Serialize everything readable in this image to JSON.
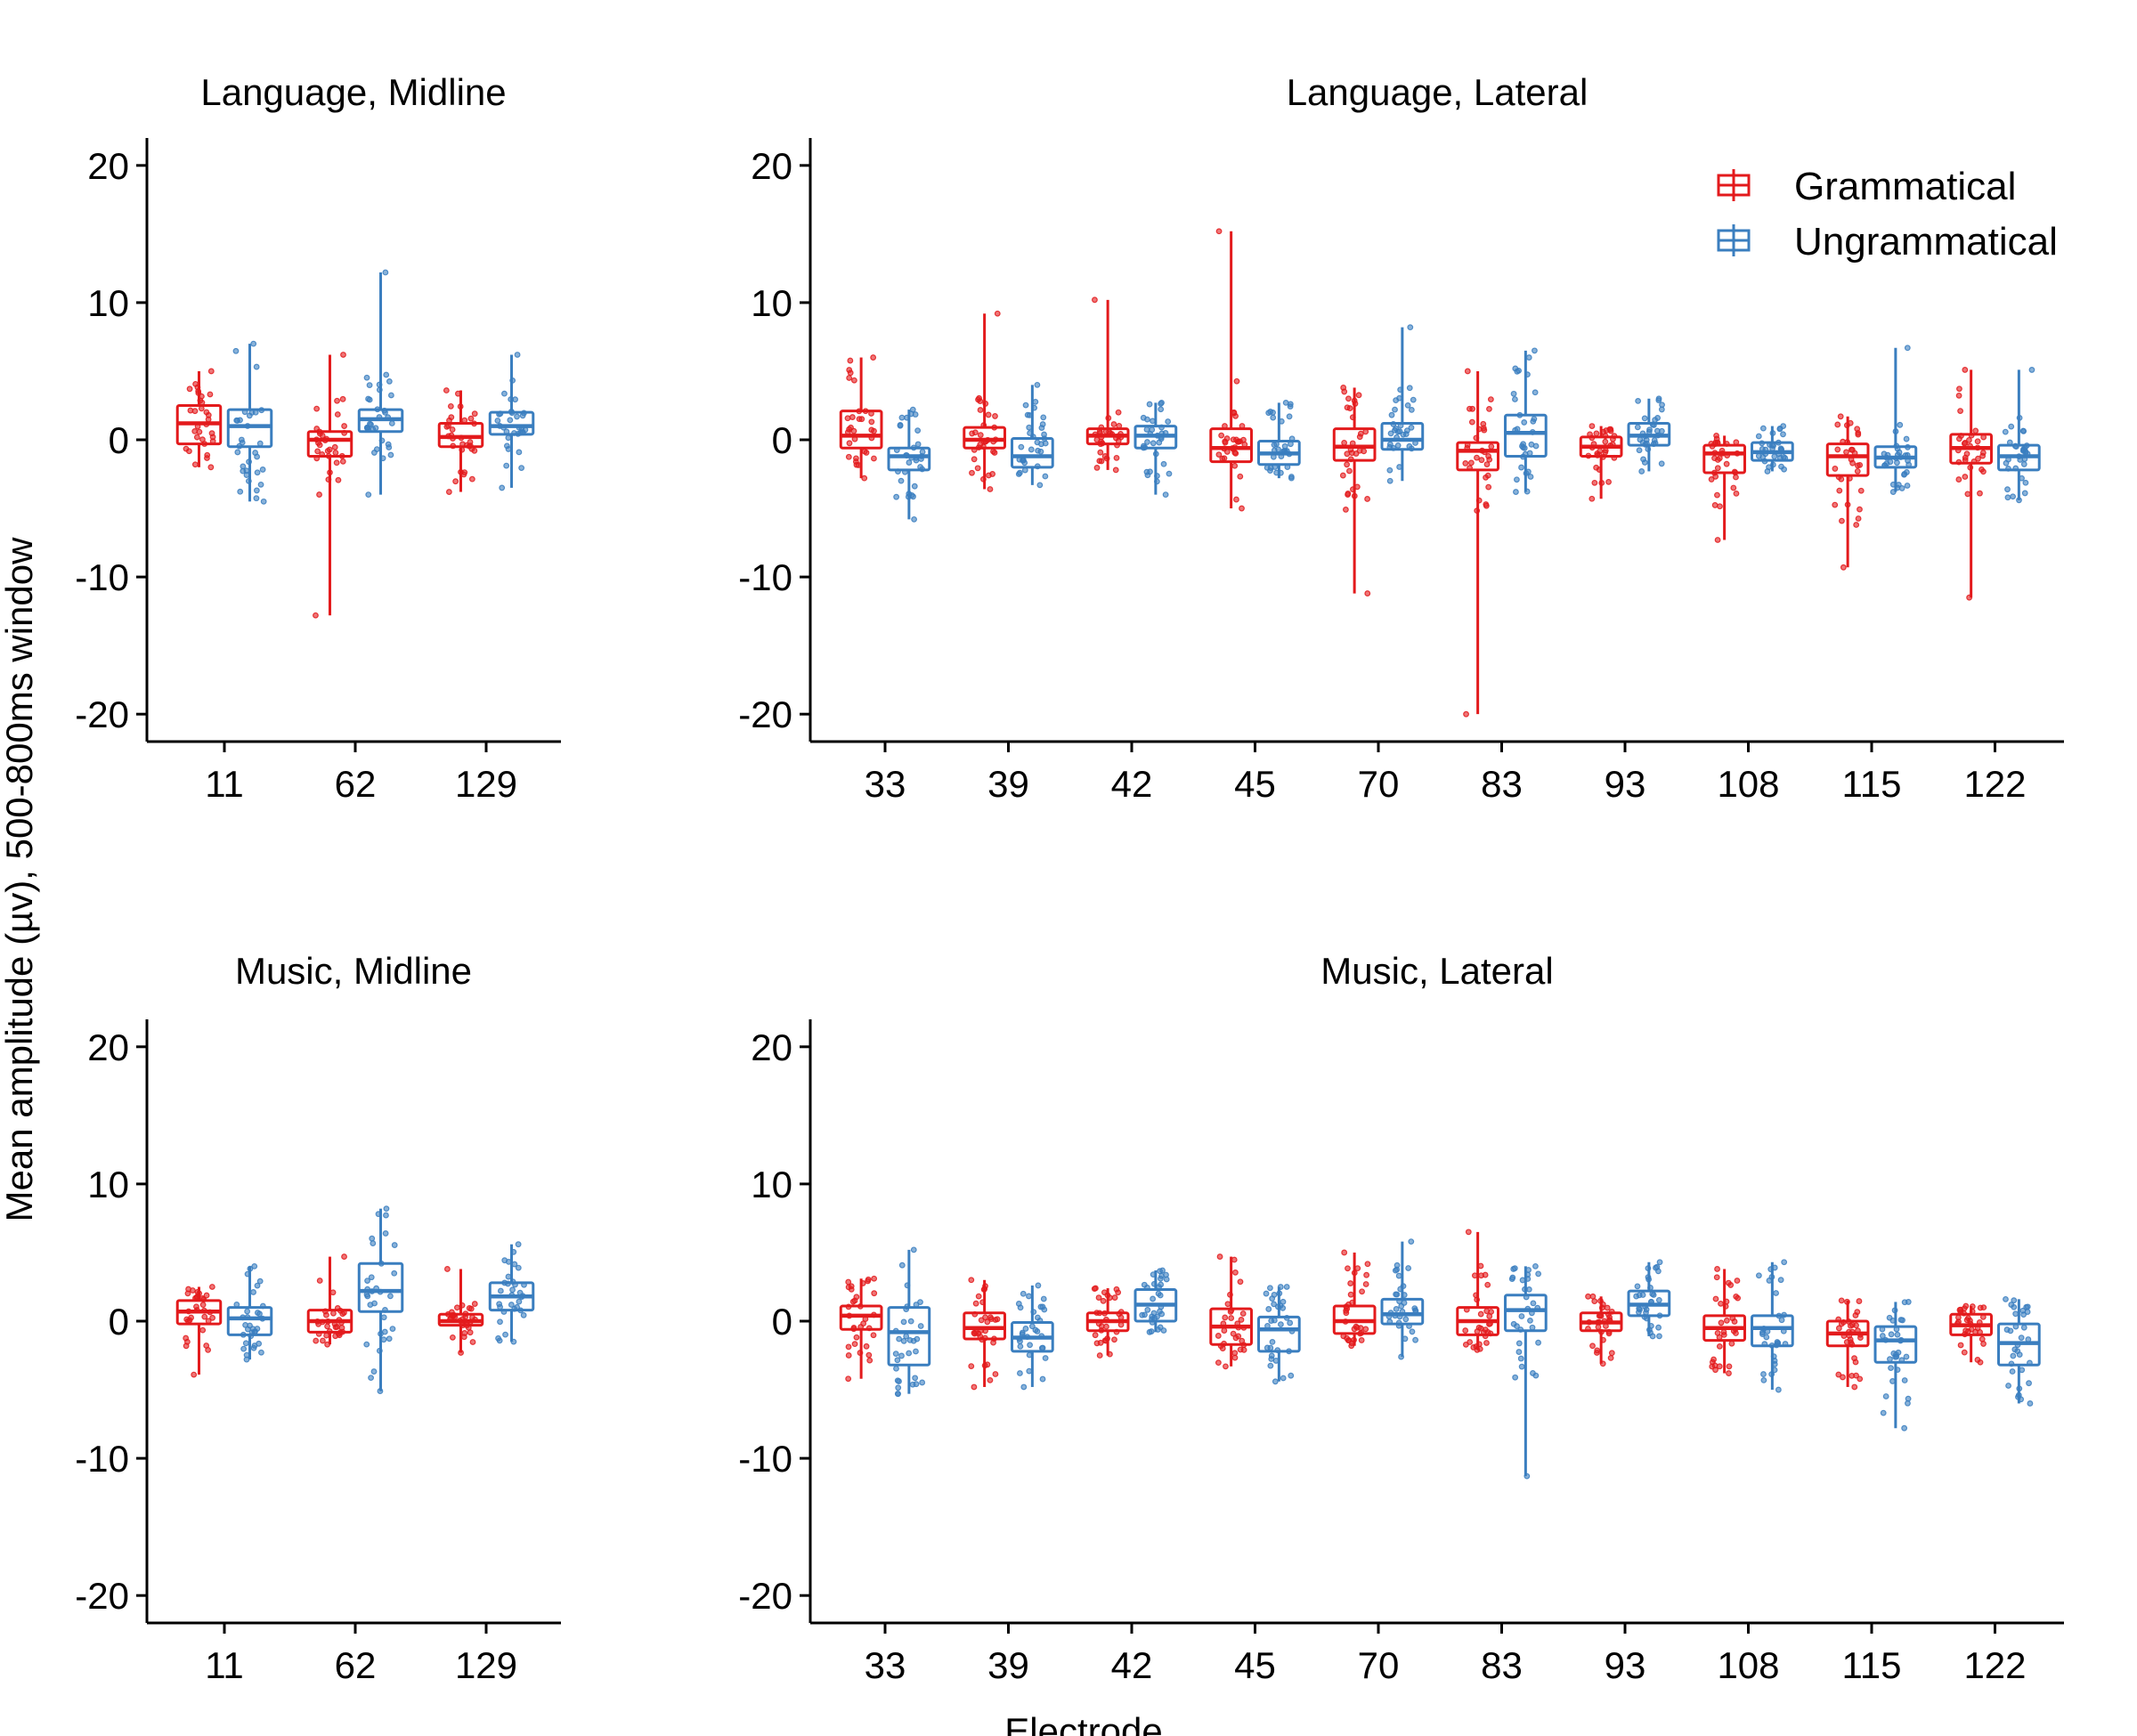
{
  "chart_data": {
    "type": "box",
    "xlabel": "Electrode",
    "ylabel": "Mean amplitude (µv), 500-800ms window",
    "ylim": [
      -22,
      22
    ],
    "yticks": [
      -20,
      -10,
      0,
      10,
      20
    ],
    "legend": {
      "placement": "top-right",
      "entries": [
        {
          "name": "Grammatical",
          "color": "#e31a1c"
        },
        {
          "name": "Ungrammatical",
          "color": "#3a7ebf"
        }
      ]
    },
    "series_colors": {
      "Grammatical": "#e31a1c",
      "Ungrammatical": "#3a7ebf"
    },
    "panels": [
      {
        "title": "Language, Midline",
        "categories": [
          "11",
          "62",
          "129"
        ],
        "series": [
          {
            "name": "Grammatical",
            "boxes": [
              {
                "min": -2.0,
                "q1": -0.3,
                "median": 1.2,
                "q3": 2.5,
                "max": 5.0
              },
              {
                "min": -12.8,
                "q1": -1.2,
                "median": 0.0,
                "q3": 0.6,
                "max": 6.2
              },
              {
                "min": -3.8,
                "q1": -0.5,
                "median": 0.2,
                "q3": 1.2,
                "max": 3.6
              }
            ]
          },
          {
            "name": "Ungrammatical",
            "boxes": [
              {
                "min": -4.5,
                "q1": -0.5,
                "median": 1.0,
                "q3": 2.2,
                "max": 7.0
              },
              {
                "min": -4.0,
                "q1": 0.6,
                "median": 1.5,
                "q3": 2.2,
                "max": 12.2
              },
              {
                "min": -3.5,
                "q1": 0.4,
                "median": 1.0,
                "q3": 2.0,
                "max": 6.2
              }
            ]
          }
        ]
      },
      {
        "title": "Language, Lateral",
        "categories": [
          "33",
          "39",
          "42",
          "45",
          "70",
          "83",
          "93",
          "108",
          "115",
          "122"
        ],
        "series": [
          {
            "name": "Grammatical",
            "boxes": [
              {
                "min": -2.8,
                "q1": -0.6,
                "median": 0.3,
                "q3": 2.1,
                "max": 6.0
              },
              {
                "min": -3.6,
                "q1": -0.6,
                "median": 0.0,
                "q3": 0.9,
                "max": 9.2
              },
              {
                "min": -2.2,
                "q1": -0.3,
                "median": 0.3,
                "q3": 0.8,
                "max": 10.2
              },
              {
                "min": -5.0,
                "q1": -1.6,
                "median": -0.6,
                "q3": 0.8,
                "max": 15.2
              },
              {
                "min": -11.2,
                "q1": -1.5,
                "median": -0.5,
                "q3": 0.8,
                "max": 3.8
              },
              {
                "min": -20.0,
                "q1": -2.2,
                "median": -0.8,
                "q3": -0.2,
                "max": 5.0
              },
              {
                "min": -4.3,
                "q1": -1.2,
                "median": -0.5,
                "q3": 0.2,
                "max": 1.0
              },
              {
                "min": -7.3,
                "q1": -2.4,
                "median": -1.0,
                "q3": -0.4,
                "max": 0.3
              },
              {
                "min": -9.3,
                "q1": -2.6,
                "median": -1.2,
                "q3": -0.3,
                "max": 1.7
              },
              {
                "min": -11.5,
                "q1": -1.7,
                "median": -0.6,
                "q3": 0.4,
                "max": 5.1
              }
            ]
          },
          {
            "name": "Ungrammatical",
            "boxes": [
              {
                "min": -5.8,
                "q1": -2.2,
                "median": -1.2,
                "q3": -0.6,
                "max": 2.2
              },
              {
                "min": -3.3,
                "q1": -2.0,
                "median": -1.2,
                "q3": 0.1,
                "max": 4.0
              },
              {
                "min": -4.0,
                "q1": -0.6,
                "median": 0.3,
                "q3": 1.0,
                "max": 2.7
              },
              {
                "min": -2.8,
                "q1": -1.8,
                "median": -1.0,
                "q3": -0.1,
                "max": 2.7
              },
              {
                "min": -3.0,
                "q1": -0.7,
                "median": 0.0,
                "q3": 1.2,
                "max": 8.2
              },
              {
                "min": -3.8,
                "q1": -1.2,
                "median": 0.5,
                "q3": 1.8,
                "max": 6.5
              },
              {
                "min": -2.3,
                "q1": -0.4,
                "median": 0.3,
                "q3": 1.2,
                "max": 3.0
              },
              {
                "min": -2.3,
                "q1": -1.5,
                "median": -0.9,
                "q3": -0.2,
                "max": 1.0
              },
              {
                "min": -3.8,
                "q1": -2.0,
                "median": -1.3,
                "q3": -0.5,
                "max": 6.7
              },
              {
                "min": -4.4,
                "q1": -2.2,
                "median": -1.2,
                "q3": -0.4,
                "max": 5.1
              }
            ]
          }
        ]
      },
      {
        "title": "Music, Midline",
        "categories": [
          "11",
          "62",
          "129"
        ],
        "series": [
          {
            "name": "Grammatical",
            "boxes": [
              {
                "min": -3.9,
                "q1": -0.2,
                "median": 0.7,
                "q3": 1.5,
                "max": 2.5
              },
              {
                "min": -1.7,
                "q1": -0.8,
                "median": 0.0,
                "q3": 0.8,
                "max": 4.7
              },
              {
                "min": -2.3,
                "q1": -0.3,
                "median": 0.0,
                "q3": 0.5,
                "max": 3.8
              }
            ]
          },
          {
            "name": "Ungrammatical",
            "boxes": [
              {
                "min": -2.8,
                "q1": -1.0,
                "median": 0.2,
                "q3": 1.0,
                "max": 4.0
              },
              {
                "min": -5.1,
                "q1": 0.7,
                "median": 2.2,
                "q3": 4.2,
                "max": 8.2
              },
              {
                "min": -1.5,
                "q1": 0.8,
                "median": 1.8,
                "q3": 2.8,
                "max": 5.6
              }
            ]
          }
        ]
      },
      {
        "title": "Music, Lateral",
        "categories": [
          "33",
          "39",
          "42",
          "45",
          "70",
          "83",
          "93",
          "108",
          "115",
          "122"
        ],
        "series": [
          {
            "name": "Grammatical",
            "boxes": [
              {
                "min": -4.2,
                "q1": -0.6,
                "median": 0.4,
                "q3": 1.1,
                "max": 3.1
              },
              {
                "min": -4.8,
                "q1": -1.3,
                "median": -0.5,
                "q3": 0.6,
                "max": 3.0
              },
              {
                "min": -2.5,
                "q1": -0.7,
                "median": 0.0,
                "q3": 0.6,
                "max": 2.4
              },
              {
                "min": -3.3,
                "q1": -1.7,
                "median": -0.4,
                "q3": 0.9,
                "max": 4.7
              },
              {
                "min": -1.8,
                "q1": -0.9,
                "median": 0.0,
                "q3": 1.1,
                "max": 5.0
              },
              {
                "min": -2.1,
                "q1": -1.0,
                "median": 0.0,
                "q3": 1.0,
                "max": 6.5
              },
              {
                "min": -3.1,
                "q1": -0.7,
                "median": -0.1,
                "q3": 0.6,
                "max": 1.8
              },
              {
                "min": -3.8,
                "q1": -1.4,
                "median": -0.5,
                "q3": 0.4,
                "max": 3.8
              },
              {
                "min": -4.8,
                "q1": -1.8,
                "median": -0.9,
                "q3": 0.0,
                "max": 1.5
              },
              {
                "min": -3.0,
                "q1": -1.0,
                "median": -0.3,
                "q3": 0.5,
                "max": 1.1
              }
            ]
          },
          {
            "name": "Ungrammatical",
            "boxes": [
              {
                "min": -5.3,
                "q1": -3.2,
                "median": -0.8,
                "q3": 1.0,
                "max": 5.2
              },
              {
                "min": -4.8,
                "q1": -2.2,
                "median": -1.2,
                "q3": -0.1,
                "max": 2.6
              },
              {
                "min": -0.8,
                "q1": 0.0,
                "median": 1.2,
                "q3": 2.3,
                "max": 3.7
              },
              {
                "min": -4.4,
                "q1": -2.2,
                "median": -0.6,
                "q3": 0.3,
                "max": 2.5
              },
              {
                "min": -2.6,
                "q1": -0.2,
                "median": 0.5,
                "q3": 1.6,
                "max": 5.8
              },
              {
                "min": -11.3,
                "q1": -0.7,
                "median": 0.8,
                "q3": 1.9,
                "max": 4.0
              },
              {
                "min": -1.1,
                "q1": 0.4,
                "median": 1.2,
                "q3": 2.2,
                "max": 4.3
              },
              {
                "min": -5.0,
                "q1": -1.8,
                "median": -0.5,
                "q3": 0.4,
                "max": 4.3
              },
              {
                "min": -7.8,
                "q1": -3.0,
                "median": -1.4,
                "q3": -0.4,
                "max": 1.4
              },
              {
                "min": -6.0,
                "q1": -3.2,
                "median": -1.6,
                "q3": -0.2,
                "max": 1.6
              }
            ]
          }
        ]
      }
    ]
  }
}
